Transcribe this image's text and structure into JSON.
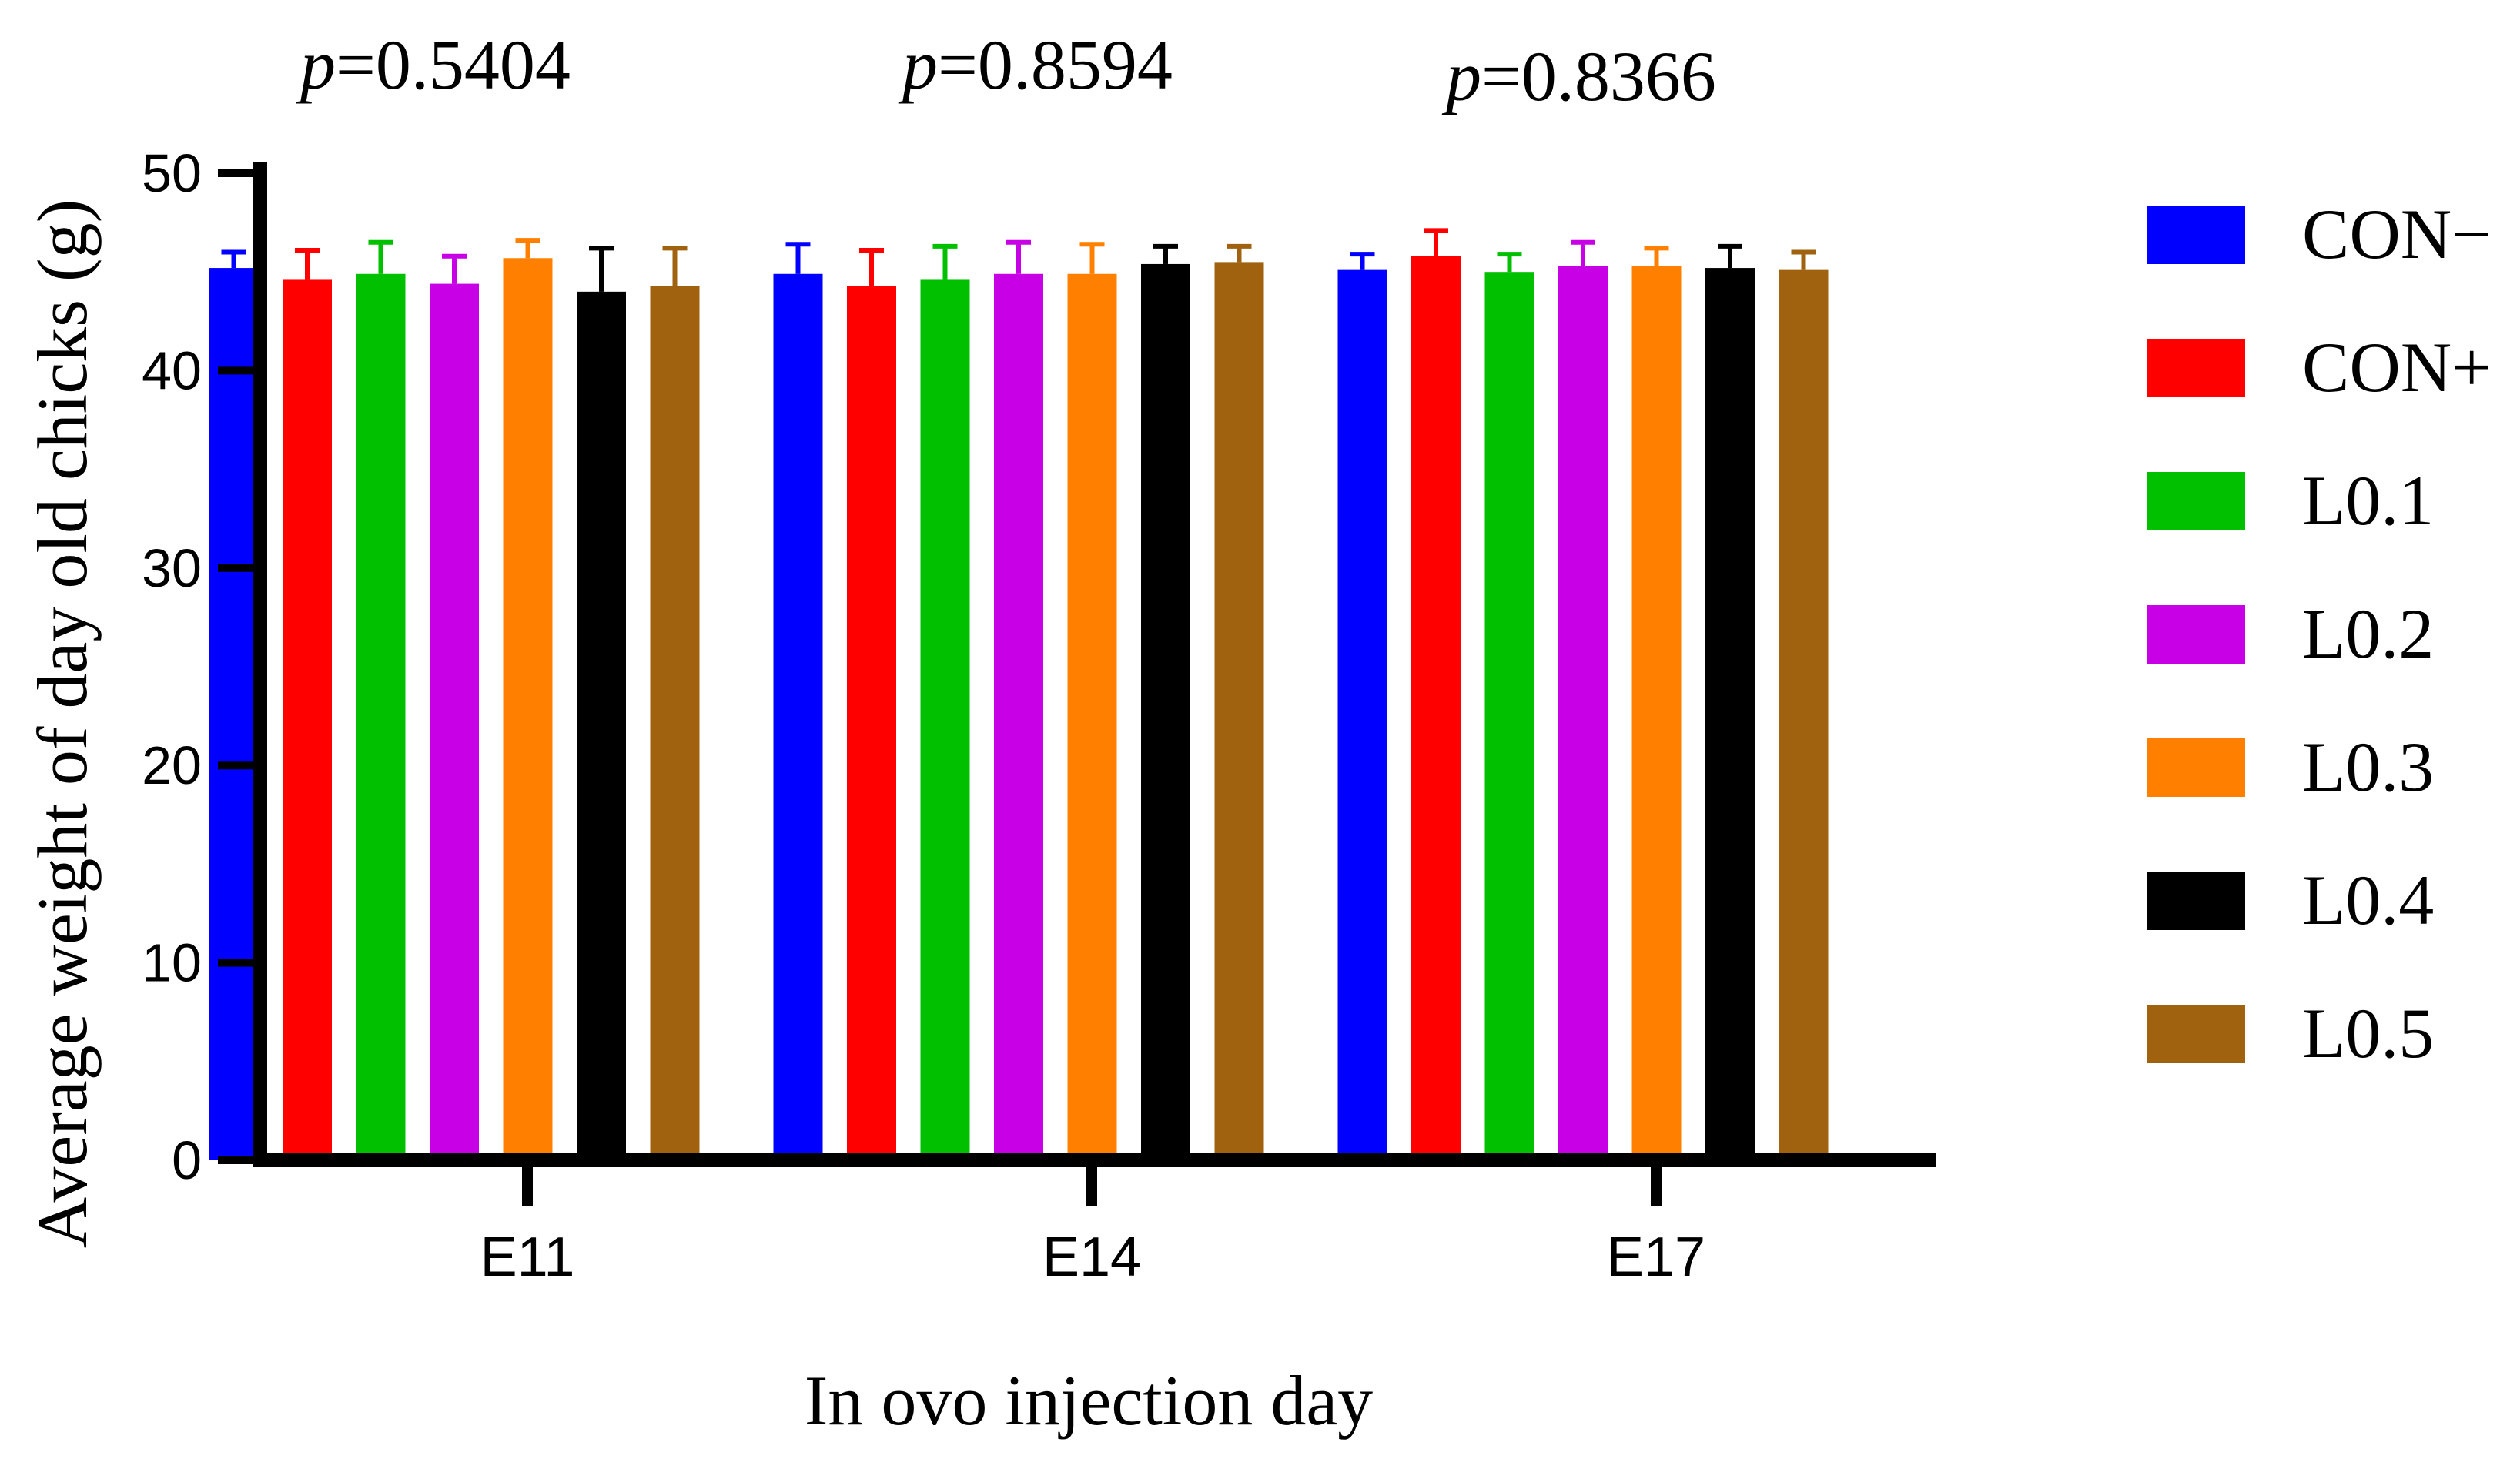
{
  "chart_data": {
    "type": "bar",
    "categories": [
      "E11",
      "E14",
      "E17"
    ],
    "series": [
      {
        "name": "CON−",
        "color": "#0000ff",
        "values": [
          45.2,
          44.9,
          45.1
        ],
        "errors": [
          0.8,
          1.5,
          0.8
        ]
      },
      {
        "name": "CON+",
        "color": "#ff0000",
        "values": [
          44.6,
          44.3,
          45.8
        ],
        "errors": [
          1.5,
          1.8,
          1.3
        ]
      },
      {
        "name": "L0.1",
        "color": "#00c000",
        "values": [
          44.9,
          44.6,
          45.0
        ],
        "errors": [
          1.6,
          1.7,
          0.9
        ]
      },
      {
        "name": "L0.2",
        "color": "#c800e6",
        "values": [
          44.4,
          44.9,
          45.3
        ],
        "errors": [
          1.4,
          1.6,
          1.2
        ]
      },
      {
        "name": "L0.3",
        "color": "#ff8000",
        "values": [
          45.7,
          44.9,
          45.3
        ],
        "errors": [
          0.9,
          1.5,
          0.9
        ]
      },
      {
        "name": "L0.4",
        "color": "#000000",
        "values": [
          44.0,
          45.4,
          45.2
        ],
        "errors": [
          2.2,
          0.9,
          1.1
        ]
      },
      {
        "name": "L0.5",
        "color": "#a0620f",
        "values": [
          44.3,
          45.5,
          45.1
        ],
        "errors": [
          1.9,
          0.8,
          0.9
        ]
      }
    ],
    "p_values": [
      {
        "prefix": "p",
        "value": "=0.5404"
      },
      {
        "prefix": "p",
        "value": "=0.8594"
      },
      {
        "prefix": "p",
        "value": "=0.8366"
      }
    ],
    "ylim": [
      0,
      50
    ],
    "yticks": [
      0,
      10,
      20,
      30,
      40,
      50
    ],
    "xlabel": "In ovo injection day",
    "ylabel": "Average weight of day old chicks (g)",
    "legend_position": "right"
  }
}
